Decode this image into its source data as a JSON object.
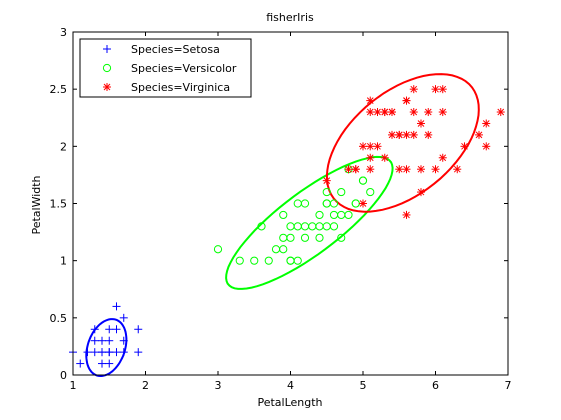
{
  "chart_data": {
    "type": "scatter",
    "title": "fisherIris",
    "xlabel": "PetalLength",
    "ylabel": "PetalWidth",
    "xlim": [
      1,
      7
    ],
    "ylim": [
      0,
      3
    ],
    "xticks": [
      "1",
      "2",
      "3",
      "4",
      "5",
      "6",
      "7"
    ],
    "yticks": [
      "0",
      "0.5",
      "1",
      "1.5",
      "2",
      "2.5",
      "3"
    ],
    "grid": false,
    "legend_position": "top-left",
    "series": [
      {
        "name": "Species=Setosa",
        "marker": "plus",
        "color": "#0000ff",
        "points": [
          [
            1.6,
            0.6
          ],
          [
            1.3,
            0.4
          ],
          [
            1.5,
            0.4
          ],
          [
            1.7,
            0.5
          ],
          [
            1.9,
            0.4
          ],
          [
            1.6,
            0.4
          ],
          [
            1.4,
            0.3
          ],
          [
            1.5,
            0.3
          ],
          [
            1.7,
            0.3
          ],
          [
            1.3,
            0.3
          ],
          [
            1.2,
            0.2
          ],
          [
            1.3,
            0.2
          ],
          [
            1.4,
            0.2
          ],
          [
            1.5,
            0.2
          ],
          [
            1.6,
            0.2
          ],
          [
            1.7,
            0.2
          ],
          [
            1.9,
            0.2
          ],
          [
            1.0,
            0.2
          ],
          [
            1.1,
            0.1
          ],
          [
            1.4,
            0.1
          ],
          [
            1.5,
            0.1
          ],
          [
            1.4,
            0.2
          ],
          [
            1.5,
            0.2
          ]
        ],
        "ellipse": {
          "cx": 1.46,
          "cy": 0.24,
          "rx": 0.3,
          "ry": 0.22,
          "angle_deg": 35
        }
      },
      {
        "name": "Species=Versicolor",
        "marker": "circle",
        "color": "#00ff00",
        "points": [
          [
            3.0,
            1.1
          ],
          [
            3.3,
            1.0
          ],
          [
            3.5,
            1.0
          ],
          [
            3.6,
            1.3
          ],
          [
            3.7,
            1.0
          ],
          [
            3.8,
            1.1
          ],
          [
            3.9,
            1.1
          ],
          [
            3.9,
            1.2
          ],
          [
            3.9,
            1.4
          ],
          [
            4.0,
            1.0
          ],
          [
            4.0,
            1.2
          ],
          [
            4.0,
            1.3
          ],
          [
            4.1,
            1.0
          ],
          [
            4.1,
            1.3
          ],
          [
            4.2,
            1.2
          ],
          [
            4.2,
            1.3
          ],
          [
            4.2,
            1.5
          ],
          [
            4.3,
            1.3
          ],
          [
            4.4,
            1.3
          ],
          [
            4.4,
            1.4
          ],
          [
            4.5,
            1.3
          ],
          [
            4.5,
            1.5
          ],
          [
            4.6,
            1.3
          ],
          [
            4.6,
            1.5
          ],
          [
            4.7,
            1.2
          ],
          [
            4.7,
            1.4
          ],
          [
            4.8,
            1.4
          ],
          [
            4.8,
            1.8
          ],
          [
            4.9,
            1.5
          ],
          [
            5.0,
            1.7
          ],
          [
            5.1,
            1.6
          ],
          [
            4.5,
            1.6
          ],
          [
            4.1,
            1.5
          ],
          [
            4.4,
            1.2
          ],
          [
            4.7,
            1.6
          ],
          [
            4.6,
            1.4
          ],
          [
            4.9,
            1.5
          ],
          [
            5.0,
            1.7
          ],
          [
            4.5,
            1.5
          ],
          [
            4.0,
            1.0
          ]
        ],
        "ellipse": {
          "cx": 4.26,
          "cy": 1.33,
          "rx": 1.25,
          "ry": 0.3,
          "angle_deg": 24
        }
      },
      {
        "name": "Species=Virginica",
        "marker": "asterisk",
        "color": "#ff0000",
        "points": [
          [
            4.5,
            1.7
          ],
          [
            4.8,
            1.8
          ],
          [
            4.9,
            1.8
          ],
          [
            5.0,
            2.0
          ],
          [
            5.1,
            1.8
          ],
          [
            5.1,
            1.9
          ],
          [
            5.1,
            2.0
          ],
          [
            5.1,
            2.3
          ],
          [
            5.1,
            2.4
          ],
          [
            5.2,
            2.0
          ],
          [
            5.2,
            2.3
          ],
          [
            5.3,
            1.9
          ],
          [
            5.3,
            2.3
          ],
          [
            5.4,
            2.1
          ],
          [
            5.4,
            2.3
          ],
          [
            5.5,
            1.8
          ],
          [
            5.5,
            2.1
          ],
          [
            5.6,
            1.4
          ],
          [
            5.6,
            1.8
          ],
          [
            5.6,
            2.1
          ],
          [
            5.6,
            2.4
          ],
          [
            5.7,
            2.1
          ],
          [
            5.7,
            2.3
          ],
          [
            5.7,
            2.5
          ],
          [
            5.8,
            1.6
          ],
          [
            5.8,
            1.8
          ],
          [
            5.8,
            2.2
          ],
          [
            5.9,
            2.1
          ],
          [
            5.9,
            2.3
          ],
          [
            6.0,
            1.8
          ],
          [
            6.0,
            2.5
          ],
          [
            6.1,
            1.9
          ],
          [
            6.1,
            2.3
          ],
          [
            6.1,
            2.5
          ],
          [
            6.3,
            1.8
          ],
          [
            6.4,
            2.0
          ],
          [
            6.6,
            2.1
          ],
          [
            6.7,
            2.0
          ],
          [
            6.7,
            2.2
          ],
          [
            6.9,
            2.3
          ],
          [
            5.0,
            1.5
          ],
          [
            4.9,
            1.8
          ],
          [
            5.5,
            2.1
          ],
          [
            5.6,
            2.4
          ],
          [
            5.4,
            2.3
          ],
          [
            5.3,
            2.3
          ]
        ],
        "ellipse": {
          "cx": 5.55,
          "cy": 2.03,
          "rx": 1.1,
          "ry": 0.5,
          "angle_deg": 20
        }
      }
    ]
  }
}
